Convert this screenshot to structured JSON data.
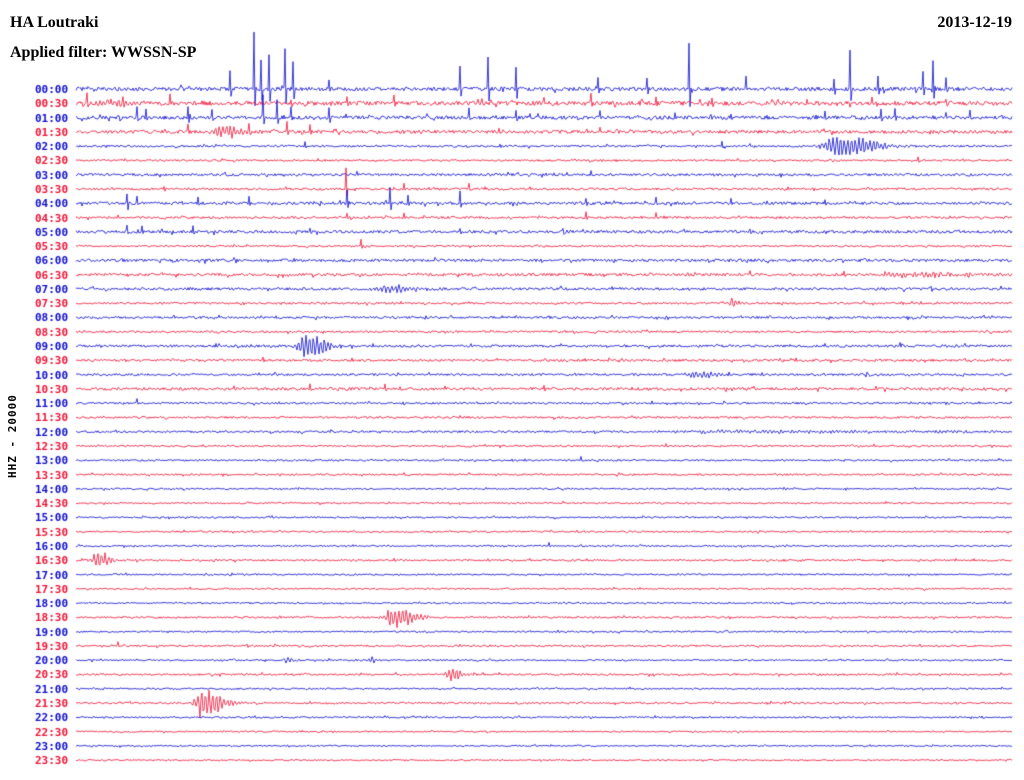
{
  "header": {
    "station": "HA Loutraki",
    "date": "2013-12-19",
    "filter_label": "Applied filter: WWSSN-SP"
  },
  "axis": {
    "left_label": "HHZ - 20000"
  },
  "colors": {
    "blue": "#0d0dcf",
    "red": "#ee1437",
    "background": "#ffffff",
    "text": "#000000"
  },
  "chart_data": {
    "type": "line",
    "subtype": "helicorder-seismogram",
    "title": "HA Loutraki",
    "date": "2013-12-19",
    "filter": "WWSSN-SP",
    "channel_scale_label": "HHZ - 20000",
    "minutes_per_row": 30,
    "row_time_range": [
      "00:00",
      "23:30"
    ],
    "legend_position": "none",
    "grid": false,
    "rows": [
      {
        "time": "00:00",
        "color": "blue",
        "noise": 1.9,
        "spikes": [
          [
            0.165,
            18
          ],
          [
            0.19,
            55
          ],
          [
            0.198,
            28
          ],
          [
            0.206,
            35
          ],
          [
            0.223,
            40
          ],
          [
            0.232,
            26
          ],
          [
            0.27,
            10
          ],
          [
            0.41,
            22
          ],
          [
            0.44,
            30
          ],
          [
            0.47,
            26
          ],
          [
            0.558,
            12
          ],
          [
            0.61,
            10
          ],
          [
            0.655,
            45
          ],
          [
            0.716,
            14
          ],
          [
            0.81,
            10
          ],
          [
            0.827,
            38
          ],
          [
            0.857,
            12
          ],
          [
            0.905,
            18
          ],
          [
            0.916,
            28
          ],
          [
            0.93,
            12
          ]
        ],
        "events": []
      },
      {
        "time": "00:30",
        "color": "red",
        "noise": 2.1,
        "spikes": [
          [
            0.012,
            9
          ],
          [
            0.05,
            7
          ],
          [
            0.1,
            6
          ],
          [
            0.135,
            5
          ],
          [
            0.23,
            6
          ],
          [
            0.29,
            5
          ],
          [
            0.34,
            8
          ],
          [
            0.43,
            6
          ],
          [
            0.5,
            5
          ],
          [
            0.55,
            8
          ],
          [
            0.62,
            5
          ],
          [
            0.68,
            4
          ],
          [
            0.75,
            4
          ],
          [
            0.85,
            5
          ],
          [
            0.93,
            4
          ]
        ],
        "events": [
          [
            0.04,
            4,
            18
          ]
        ]
      },
      {
        "time": "01:00",
        "color": "blue",
        "noise": 1.8,
        "spikes": [
          [
            0.065,
            12
          ],
          [
            0.075,
            8
          ],
          [
            0.12,
            10
          ],
          [
            0.145,
            8
          ],
          [
            0.2,
            22
          ],
          [
            0.215,
            18
          ],
          [
            0.23,
            12
          ],
          [
            0.27,
            10
          ],
          [
            0.42,
            8
          ],
          [
            0.47,
            6
          ],
          [
            0.56,
            8
          ],
          [
            0.64,
            5
          ],
          [
            0.7,
            4
          ],
          [
            0.8,
            6
          ],
          [
            0.86,
            10
          ],
          [
            0.875,
            8
          ],
          [
            0.93,
            6
          ],
          [
            0.955,
            5
          ]
        ],
        "events": []
      },
      {
        "time": "01:30",
        "color": "red",
        "noise": 1.6,
        "spikes": [
          [
            0.12,
            6
          ],
          [
            0.185,
            8
          ],
          [
            0.225,
            10
          ],
          [
            0.25,
            6
          ],
          [
            0.56,
            4
          ]
        ],
        "events": [
          [
            0.155,
            7,
            14
          ]
        ]
      },
      {
        "time": "02:00",
        "color": "blue",
        "noise": 1.0,
        "spikes": [
          [
            0.245,
            4
          ],
          [
            0.69,
            5
          ],
          [
            0.72,
            3
          ]
        ],
        "events": [
          [
            0.815,
            13,
            22
          ]
        ]
      },
      {
        "time": "02:30",
        "color": "red",
        "noise": 0.9,
        "spikes": [
          [
            0.9,
            3
          ]
        ],
        "events": []
      },
      {
        "time": "03:00",
        "color": "blue",
        "noise": 1.2,
        "spikes": [
          [
            0.3,
            3
          ],
          [
            0.55,
            4
          ]
        ],
        "events": []
      },
      {
        "time": "03:30",
        "color": "red",
        "noise": 1.1,
        "spikes": [
          [
            0.288,
            22
          ],
          [
            0.35,
            6
          ],
          [
            0.42,
            5
          ]
        ],
        "events": []
      },
      {
        "time": "04:00",
        "color": "blue",
        "noise": 1.4,
        "spikes": [
          [
            0.055,
            10
          ],
          [
            0.065,
            6
          ],
          [
            0.13,
            5
          ],
          [
            0.185,
            6
          ],
          [
            0.29,
            13
          ],
          [
            0.335,
            17
          ],
          [
            0.355,
            9
          ],
          [
            0.41,
            11
          ],
          [
            0.545,
            6
          ],
          [
            0.62,
            5
          ],
          [
            0.7,
            4
          ],
          [
            0.8,
            4
          ]
        ],
        "events": []
      },
      {
        "time": "04:30",
        "color": "red",
        "noise": 1.1,
        "spikes": [
          [
            0.29,
            5
          ],
          [
            0.35,
            4
          ],
          [
            0.545,
            6
          ],
          [
            0.62,
            4
          ]
        ],
        "events": []
      },
      {
        "time": "05:00",
        "color": "blue",
        "noise": 1.4,
        "spikes": [
          [
            0.055,
            8
          ],
          [
            0.07,
            5
          ],
          [
            0.125,
            5
          ],
          [
            0.25,
            4
          ],
          [
            0.41,
            4
          ],
          [
            0.52,
            4
          ],
          [
            0.65,
            4
          ],
          [
            0.72,
            4
          ]
        ],
        "events": []
      },
      {
        "time": "05:30",
        "color": "red",
        "noise": 0.9,
        "spikes": [
          [
            0.305,
            6
          ]
        ],
        "events": []
      },
      {
        "time": "06:00",
        "color": "blue",
        "noise": 1.4,
        "spikes": [],
        "events": []
      },
      {
        "time": "06:30",
        "color": "red",
        "noise": 1.4,
        "spikes": [
          [
            0.72,
            4
          ],
          [
            0.82,
            4
          ]
        ],
        "events": [
          [
            0.88,
            3,
            35
          ]
        ]
      },
      {
        "time": "07:00",
        "color": "blue",
        "noise": 1.3,
        "spikes": [],
        "events": [
          [
            0.33,
            4,
            20
          ]
        ]
      },
      {
        "time": "07:30",
        "color": "red",
        "noise": 1.0,
        "spikes": [],
        "events": [
          [
            0.7,
            6,
            5
          ]
        ]
      },
      {
        "time": "08:00",
        "color": "blue",
        "noise": 1.1,
        "spikes": [],
        "events": []
      },
      {
        "time": "08:30",
        "color": "red",
        "noise": 1.0,
        "spikes": [],
        "events": []
      },
      {
        "time": "09:00",
        "color": "blue",
        "noise": 1.2,
        "spikes": [
          [
            0.8,
            3
          ],
          [
            0.88,
            4
          ],
          [
            0.93,
            3
          ]
        ],
        "events": [
          [
            0.245,
            15,
            12
          ]
        ]
      },
      {
        "time": "09:30",
        "color": "red",
        "noise": 1.2,
        "spikes": [
          [
            0.2,
            4
          ]
        ],
        "events": []
      },
      {
        "time": "10:00",
        "color": "blue",
        "noise": 1.1,
        "spikes": [],
        "events": [
          [
            0.66,
            4,
            15
          ]
        ]
      },
      {
        "time": "10:30",
        "color": "red",
        "noise": 1.4,
        "spikes": [
          [
            0.25,
            4
          ],
          [
            0.33,
            4
          ],
          [
            0.5,
            3
          ]
        ],
        "events": []
      },
      {
        "time": "11:00",
        "color": "blue",
        "noise": 1.0,
        "spikes": [
          [
            0.065,
            5
          ]
        ],
        "events": []
      },
      {
        "time": "11:30",
        "color": "red",
        "noise": 1.0,
        "spikes": [],
        "events": []
      },
      {
        "time": "12:00",
        "color": "blue",
        "noise": 1.0,
        "spikes": [],
        "events": [
          [
            0.7,
            1.5,
            120
          ]
        ]
      },
      {
        "time": "12:30",
        "color": "red",
        "noise": 0.9,
        "spikes": [
          [
            0.63,
            3
          ]
        ],
        "events": []
      },
      {
        "time": "13:00",
        "color": "blue",
        "noise": 0.9,
        "spikes": [
          [
            0.54,
            3
          ]
        ],
        "events": []
      },
      {
        "time": "13:30",
        "color": "red",
        "noise": 0.9,
        "spikes": [],
        "events": []
      },
      {
        "time": "14:00",
        "color": "blue",
        "noise": 0.8,
        "spikes": [],
        "events": []
      },
      {
        "time": "14:30",
        "color": "red",
        "noise": 0.8,
        "spikes": [
          [
            0.52,
            2
          ]
        ],
        "events": []
      },
      {
        "time": "15:00",
        "color": "blue",
        "noise": 0.8,
        "spikes": [],
        "events": []
      },
      {
        "time": "15:30",
        "color": "red",
        "noise": 0.8,
        "spikes": [],
        "events": []
      },
      {
        "time": "16:00",
        "color": "blue",
        "noise": 0.8,
        "spikes": [
          [
            0.505,
            4
          ]
        ],
        "events": []
      },
      {
        "time": "16:30",
        "color": "red",
        "noise": 0.9,
        "spikes": [],
        "events": [
          [
            0.022,
            9,
            8
          ]
        ]
      },
      {
        "time": "17:00",
        "color": "blue",
        "noise": 0.8,
        "spikes": [],
        "events": []
      },
      {
        "time": "17:30",
        "color": "red",
        "noise": 0.8,
        "spikes": [],
        "events": []
      },
      {
        "time": "18:00",
        "color": "blue",
        "noise": 0.8,
        "spikes": [],
        "events": []
      },
      {
        "time": "18:30",
        "color": "red",
        "noise": 0.9,
        "spikes": [],
        "events": [
          [
            0.34,
            13,
            13
          ]
        ]
      },
      {
        "time": "19:00",
        "color": "blue",
        "noise": 0.8,
        "spikes": [],
        "events": []
      },
      {
        "time": "19:30",
        "color": "red",
        "noise": 0.9,
        "spikes": [
          [
            0.045,
            3
          ]
        ],
        "events": []
      },
      {
        "time": "20:00",
        "color": "blue",
        "noise": 0.8,
        "spikes": [],
        "events": [
          [
            0.225,
            3,
            5
          ],
          [
            0.315,
            3,
            5
          ]
        ]
      },
      {
        "time": "20:30",
        "color": "red",
        "noise": 0.9,
        "spikes": [],
        "events": [
          [
            0.4,
            7,
            7
          ]
        ]
      },
      {
        "time": "21:00",
        "color": "blue",
        "noise": 0.8,
        "spikes": [],
        "events": []
      },
      {
        "time": "21:30",
        "color": "red",
        "noise": 0.9,
        "spikes": [],
        "events": [
          [
            0.135,
            16,
            12
          ]
        ]
      },
      {
        "time": "22:00",
        "color": "blue",
        "noise": 0.8,
        "spikes": [],
        "events": []
      },
      {
        "time": "22:30",
        "color": "red",
        "noise": 0.7,
        "spikes": [],
        "events": []
      },
      {
        "time": "23:00",
        "color": "blue",
        "noise": 0.7,
        "spikes": [],
        "events": []
      },
      {
        "time": "23:30",
        "color": "red",
        "noise": 0.7,
        "spikes": [],
        "events": []
      }
    ]
  }
}
